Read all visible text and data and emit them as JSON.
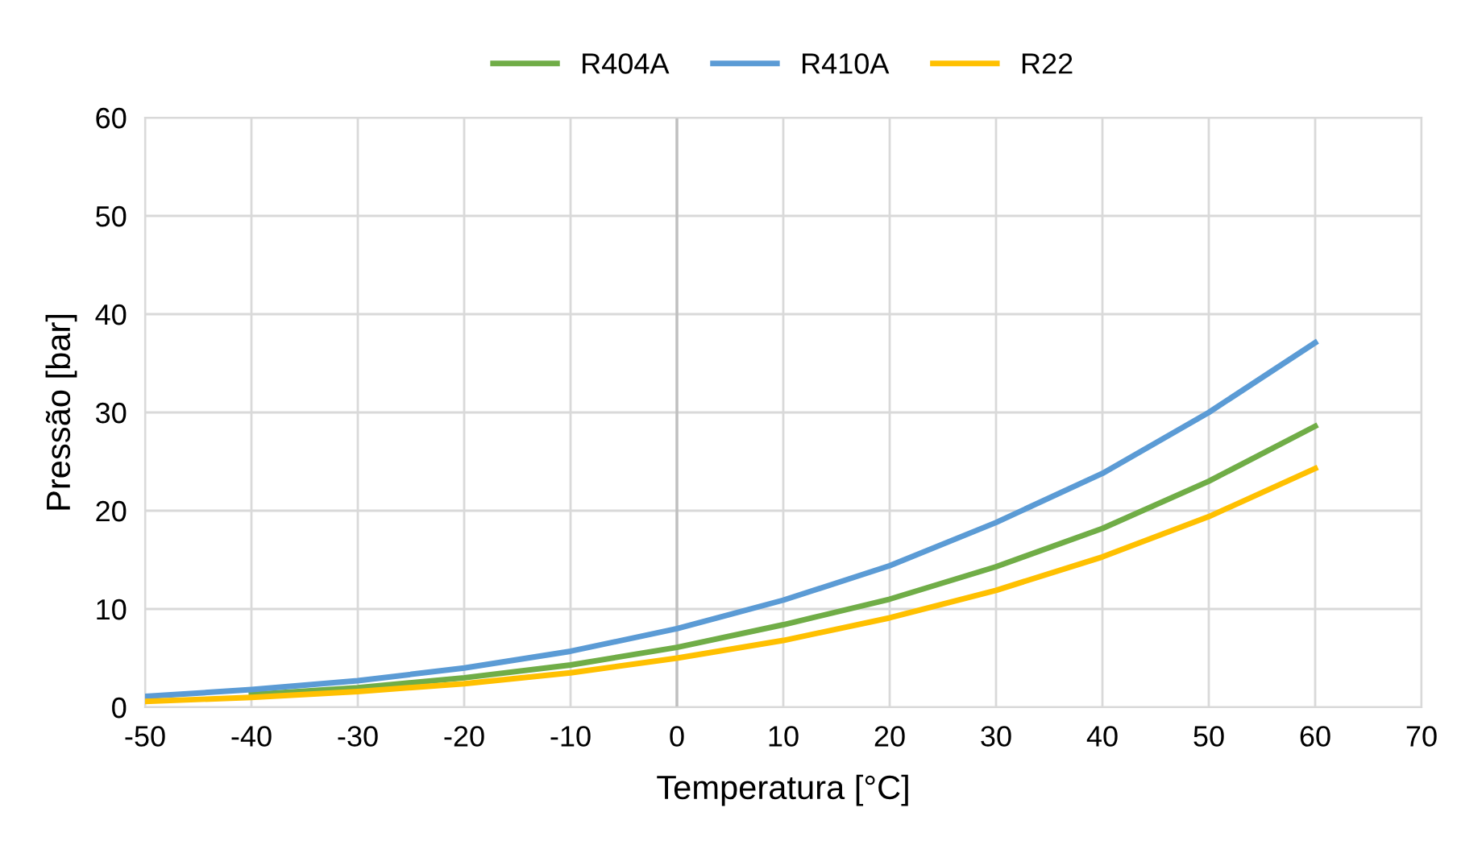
{
  "chart_data": {
    "type": "line",
    "xlabel": "Temperatura [°C]",
    "ylabel": "Pressão [bar]",
    "x": [
      -50,
      -40,
      -30,
      -20,
      -10,
      0,
      10,
      20,
      30,
      40,
      50,
      60
    ],
    "series": [
      {
        "name": "R404A",
        "color": "#70ad47",
        "values": [
          null,
          1.3,
          2.0,
          3.0,
          4.3,
          6.1,
          8.4,
          11.0,
          14.3,
          18.2,
          23.0,
          28.6
        ]
      },
      {
        "name": "R410A",
        "color": "#5b9bd5",
        "values": [
          1.1,
          1.8,
          2.7,
          4.0,
          5.7,
          8.0,
          10.9,
          14.4,
          18.8,
          23.8,
          30.0,
          37.1
        ]
      },
      {
        "name": "R22",
        "color": "#ffc000",
        "values": [
          0.6,
          1.0,
          1.6,
          2.4,
          3.5,
          5.0,
          6.8,
          9.1,
          11.9,
          15.3,
          19.4,
          24.3
        ]
      }
    ],
    "xlim": [
      -50,
      70
    ],
    "xticks": [
      -50,
      -40,
      -30,
      -20,
      -10,
      0,
      10,
      20,
      30,
      40,
      50,
      60,
      70
    ],
    "ylim": [
      0,
      60
    ],
    "yticks": [
      0,
      10,
      20,
      30,
      40,
      50,
      60
    ],
    "ref_lines": [
      {
        "axis": "x",
        "value": 0,
        "color": "#bfbfbf"
      }
    ],
    "grid": true,
    "legend": "top",
    "marker": "none",
    "line_style": "solid"
  }
}
